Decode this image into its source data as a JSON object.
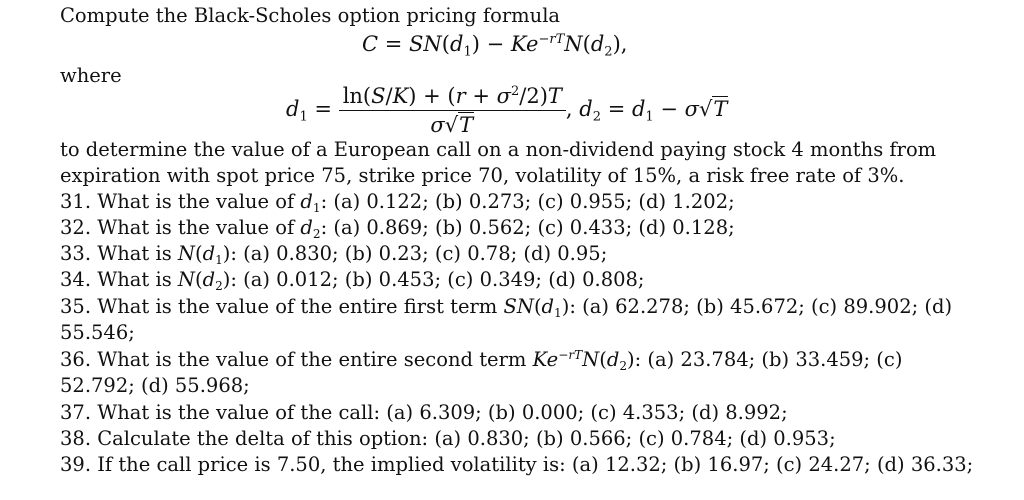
{
  "intro": "Compute the Black-Scholes option pricing formula",
  "where": "where",
  "context_1": "to determine the value of a European call on a non-dividend paying stock 4 months from",
  "context_2": "expiration with spot price 75, strike price 70, volatility of 15%, a risk free rate of 3%.",
  "questions": {
    "q31": "31. What is the value of ",
    "q31_opts": ": (a) 0.122; (b) 0.273; (c) 0.955; (d) 1.202;",
    "q32": "32. What is the value of ",
    "q32_opts": ": (a) 0.869; (b) 0.562; (c) 0.433; (d) 0.128;",
    "q33": "33. What is ",
    "q33_opts": ": (a) 0.830; (b) 0.23; (c) 0.78; (d) 0.95;",
    "q34": "34. What is ",
    "q34_opts": ": (a) 0.012; (b) 0.453; (c) 0.349; (d) 0.808;",
    "q35": "35. What is the value of the entire first term ",
    "q35_opts": ": (a) 62.278; (b) 45.672; (c) 89.902; (d)",
    "q35_cont": "55.546;",
    "q36": "36. What is the value of the entire second term ",
    "q36_opts": ": (a) 23.784; (b) 33.459; (c)",
    "q36_cont": "52.792; (d) 55.968;",
    "q37": "37. What is the value of the call: (a) 6.309; (b) 0.000; (c) 4.353; (d) 8.992;",
    "q38": "38. Calculate the delta of this option: (a) 0.830; (b) 0.566; (c) 0.784; (d) 0.953;",
    "q39": "39. If the call price is 7.50, the implied volatility is: (a) 12.32; (b) 16.97; (c) 24.27; (d) 36.33;"
  }
}
